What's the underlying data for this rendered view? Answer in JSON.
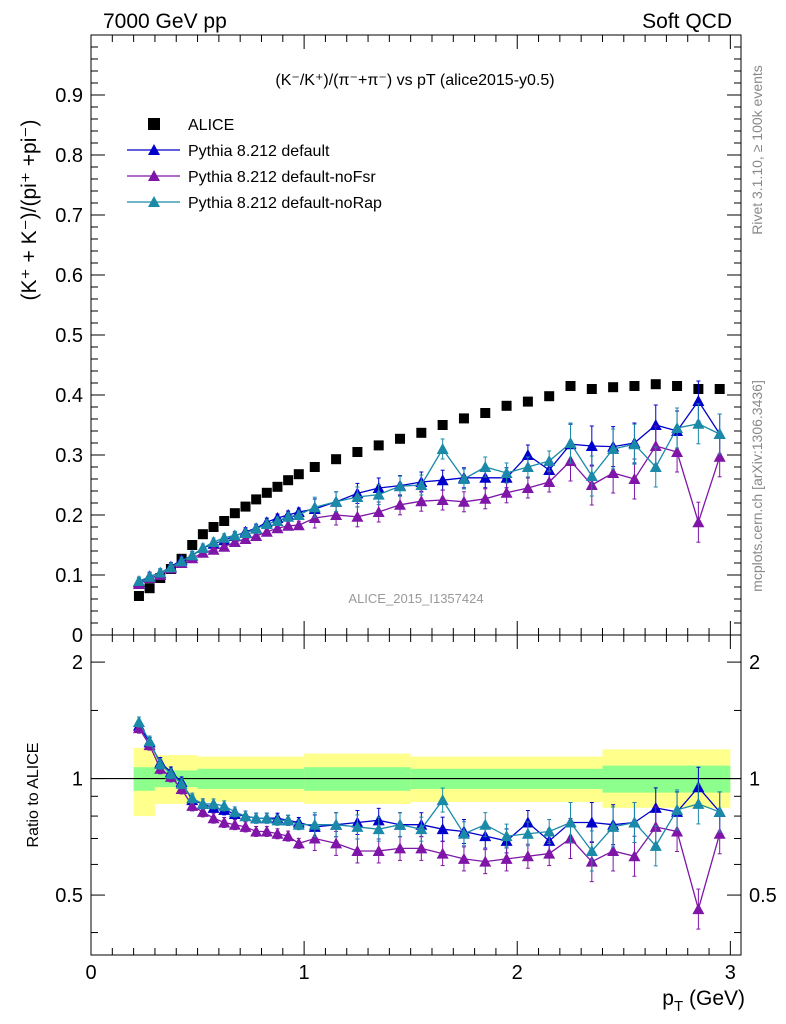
{
  "header": {
    "left": "7000 GeV pp",
    "right": "Soft QCD"
  },
  "side_labels": {
    "rivet": "Rivet 3.1.10, ≥ 100k events",
    "source": "mcplots.cern.ch [arXiv:1306.3436]"
  },
  "plot_title": "(K⁻/K⁺)/(π⁻+π⁻) vs pT (alice2015-y0.5)",
  "watermark": "ALICE_2015_I1357424",
  "colors": {
    "alice": "#000000",
    "default": "#0000cc",
    "noFsr": "#7f16a8",
    "noRap": "#1a8aa8",
    "band_outer": "#ffff8c",
    "band_inner": "#8cff8c"
  },
  "chart_data": [
    {
      "type": "scatter",
      "panel": "main",
      "ylabel": "(K⁺ + K⁻)/(pi⁺ +pi⁻)",
      "xlim": [
        0,
        3.05
      ],
      "ylim": [
        0,
        1.0
      ],
      "yticks": [
        0,
        0.1,
        0.2,
        0.3,
        0.4,
        0.5,
        0.6,
        0.7,
        0.8,
        0.9
      ],
      "ytick_labels": [
        "0",
        "0.1",
        "0.2",
        "0.3",
        "0.4",
        "0.5",
        "0.6",
        "0.7",
        "0.8",
        "0.9"
      ],
      "legend_position": "top-left",
      "series": [
        {
          "name": "ALICE",
          "key": "alice",
          "marker": "square",
          "x": [
            0.225,
            0.275,
            0.325,
            0.375,
            0.425,
            0.475,
            0.525,
            0.575,
            0.625,
            0.675,
            0.725,
            0.775,
            0.825,
            0.875,
            0.925,
            0.975,
            1.05,
            1.15,
            1.25,
            1.35,
            1.45,
            1.55,
            1.65,
            1.75,
            1.85,
            1.95,
            2.05,
            2.15,
            2.25,
            2.35,
            2.45,
            2.55,
            2.65,
            2.75,
            2.85,
            2.95
          ],
          "y": [
            0.065,
            0.078,
            0.095,
            0.11,
            0.127,
            0.15,
            0.168,
            0.18,
            0.19,
            0.203,
            0.214,
            0.226,
            0.237,
            0.247,
            0.258,
            0.268,
            0.28,
            0.293,
            0.305,
            0.316,
            0.327,
            0.337,
            0.35,
            0.361,
            0.37,
            0.382,
            0.389,
            0.398,
            0.415,
            0.41,
            0.413,
            0.415,
            0.418,
            0.415,
            0.41,
            0.41
          ]
        },
        {
          "name": "Pythia 8.212 default",
          "key": "default",
          "marker": "triangle",
          "x": [
            0.225,
            0.275,
            0.325,
            0.375,
            0.425,
            0.475,
            0.525,
            0.575,
            0.625,
            0.675,
            0.725,
            0.775,
            0.825,
            0.875,
            0.925,
            0.975,
            1.05,
            1.15,
            1.25,
            1.35,
            1.45,
            1.55,
            1.65,
            1.75,
            1.85,
            1.95,
            2.05,
            2.15,
            2.25,
            2.35,
            2.45,
            2.55,
            2.65,
            2.75,
            2.85,
            2.95
          ],
          "y": [
            0.088,
            0.098,
            0.103,
            0.114,
            0.125,
            0.132,
            0.145,
            0.152,
            0.158,
            0.165,
            0.172,
            0.178,
            0.188,
            0.195,
            0.2,
            0.205,
            0.21,
            0.222,
            0.236,
            0.245,
            0.249,
            0.255,
            0.258,
            0.262,
            0.262,
            0.262,
            0.3,
            0.275,
            0.318,
            0.315,
            0.314,
            0.32,
            0.35,
            0.34,
            0.39,
            0.335
          ]
        },
        {
          "name": "Pythia 8.212 default-noFsr",
          "key": "noFsr",
          "marker": "triangle",
          "x": [
            0.225,
            0.275,
            0.325,
            0.375,
            0.425,
            0.475,
            0.525,
            0.575,
            0.625,
            0.675,
            0.725,
            0.775,
            0.825,
            0.875,
            0.925,
            0.975,
            1.05,
            1.15,
            1.25,
            1.35,
            1.45,
            1.55,
            1.65,
            1.75,
            1.85,
            1.95,
            2.05,
            2.15,
            2.25,
            2.35,
            2.45,
            2.55,
            2.65,
            2.75,
            2.85,
            2.95
          ],
          "y": [
            0.085,
            0.095,
            0.1,
            0.111,
            0.12,
            0.128,
            0.137,
            0.142,
            0.147,
            0.155,
            0.16,
            0.165,
            0.172,
            0.178,
            0.182,
            0.183,
            0.195,
            0.2,
            0.197,
            0.205,
            0.217,
            0.223,
            0.225,
            0.222,
            0.227,
            0.237,
            0.245,
            0.255,
            0.29,
            0.25,
            0.27,
            0.26,
            0.315,
            0.305,
            0.188,
            0.297
          ]
        },
        {
          "name": "Pythia 8.212 default-noRap",
          "key": "noRap",
          "marker": "triangle",
          "x": [
            0.225,
            0.275,
            0.325,
            0.375,
            0.425,
            0.475,
            0.525,
            0.575,
            0.625,
            0.675,
            0.725,
            0.775,
            0.825,
            0.875,
            0.925,
            0.975,
            1.05,
            1.15,
            1.25,
            1.35,
            1.45,
            1.55,
            1.65,
            1.75,
            1.85,
            1.95,
            2.05,
            2.15,
            2.25,
            2.35,
            2.45,
            2.55,
            2.65,
            2.75,
            2.85,
            2.95
          ],
          "y": [
            0.09,
            0.097,
            0.104,
            0.113,
            0.123,
            0.133,
            0.145,
            0.155,
            0.162,
            0.166,
            0.17,
            0.177,
            0.185,
            0.19,
            0.197,
            0.2,
            0.213,
            0.222,
            0.23,
            0.234,
            0.248,
            0.25,
            0.31,
            0.26,
            0.28,
            0.27,
            0.28,
            0.29,
            0.32,
            0.265,
            0.31,
            0.318,
            0.28,
            0.345,
            0.352,
            0.335
          ]
        }
      ]
    },
    {
      "type": "scatter",
      "panel": "ratio",
      "ylabel": "Ratio to ALICE",
      "xlabel": "p_T (GeV)",
      "xlim": [
        0,
        3.05
      ],
      "xticks": [
        0,
        1,
        2,
        3
      ],
      "xtick_labels": [
        "0",
        "1",
        "2",
        "3"
      ],
      "ylim": [
        0.35,
        2.35
      ],
      "yscale": "log",
      "yticks": [
        0.5,
        1,
        2
      ],
      "ytick_labels": [
        "0.5",
        "1",
        "2"
      ],
      "reference_line": 1,
      "band_segments": [
        {
          "x": [
            0.2,
            0.3
          ],
          "outer": [
            0.8,
            1.2
          ],
          "inner": [
            0.93,
            1.07
          ]
        },
        {
          "x": [
            0.3,
            0.5
          ],
          "outer": [
            0.86,
            1.15
          ],
          "inner": [
            0.95,
            1.05
          ]
        },
        {
          "x": [
            0.5,
            1.0
          ],
          "outer": [
            0.87,
            1.14
          ],
          "inner": [
            0.94,
            1.06
          ]
        },
        {
          "x": [
            1.0,
            1.5
          ],
          "outer": [
            0.86,
            1.16
          ],
          "inner": [
            0.93,
            1.07
          ]
        },
        {
          "x": [
            1.5,
            2.4
          ],
          "outer": [
            0.87,
            1.14
          ],
          "inner": [
            0.94,
            1.06
          ]
        },
        {
          "x": [
            2.4,
            3.0
          ],
          "outer": [
            0.84,
            1.19
          ],
          "inner": [
            0.92,
            1.08
          ]
        }
      ],
      "series": [
        {
          "name": "Pythia 8.212 default",
          "key": "default",
          "x": [
            0.225,
            0.275,
            0.325,
            0.375,
            0.425,
            0.475,
            0.525,
            0.575,
            0.625,
            0.675,
            0.725,
            0.775,
            0.825,
            0.875,
            0.925,
            0.975,
            1.05,
            1.15,
            1.25,
            1.35,
            1.45,
            1.55,
            1.65,
            1.75,
            1.85,
            1.95,
            2.05,
            2.15,
            2.25,
            2.35,
            2.45,
            2.55,
            2.65,
            2.75,
            2.85,
            2.95
          ],
          "y": [
            1.37,
            1.24,
            1.1,
            1.04,
            0.98,
            0.88,
            0.86,
            0.84,
            0.83,
            0.81,
            0.8,
            0.79,
            0.79,
            0.79,
            0.78,
            0.77,
            0.75,
            0.76,
            0.77,
            0.78,
            0.76,
            0.76,
            0.74,
            0.73,
            0.71,
            0.69,
            0.77,
            0.69,
            0.77,
            0.77,
            0.76,
            0.77,
            0.84,
            0.82,
            0.95,
            0.82
          ]
        },
        {
          "name": "Pythia 8.212 default-noFsr",
          "key": "noFsr",
          "x": [
            0.225,
            0.275,
            0.325,
            0.375,
            0.425,
            0.475,
            0.525,
            0.575,
            0.625,
            0.675,
            0.725,
            0.775,
            0.825,
            0.875,
            0.925,
            0.975,
            1.05,
            1.15,
            1.25,
            1.35,
            1.45,
            1.55,
            1.65,
            1.75,
            1.85,
            1.95,
            2.05,
            2.15,
            2.25,
            2.35,
            2.45,
            2.55,
            2.65,
            2.75,
            2.85,
            2.95
          ],
          "y": [
            1.35,
            1.22,
            1.06,
            1.01,
            0.94,
            0.85,
            0.82,
            0.79,
            0.77,
            0.76,
            0.75,
            0.73,
            0.73,
            0.72,
            0.71,
            0.68,
            0.7,
            0.68,
            0.65,
            0.65,
            0.66,
            0.66,
            0.64,
            0.62,
            0.61,
            0.62,
            0.63,
            0.64,
            0.7,
            0.61,
            0.65,
            0.63,
            0.75,
            0.73,
            0.46,
            0.72
          ]
        },
        {
          "name": "Pythia 8.212 default-noRap",
          "key": "noRap",
          "x": [
            0.225,
            0.275,
            0.325,
            0.375,
            0.425,
            0.475,
            0.525,
            0.575,
            0.625,
            0.675,
            0.725,
            0.775,
            0.825,
            0.875,
            0.925,
            0.975,
            1.05,
            1.15,
            1.25,
            1.35,
            1.45,
            1.55,
            1.65,
            1.75,
            1.85,
            1.95,
            2.05,
            2.15,
            2.25,
            2.35,
            2.45,
            2.55,
            2.65,
            2.75,
            2.85,
            2.95
          ],
          "y": [
            1.4,
            1.25,
            1.09,
            1.03,
            0.97,
            0.89,
            0.86,
            0.86,
            0.85,
            0.82,
            0.8,
            0.79,
            0.79,
            0.78,
            0.78,
            0.76,
            0.76,
            0.76,
            0.75,
            0.74,
            0.76,
            0.74,
            0.88,
            0.72,
            0.76,
            0.71,
            0.72,
            0.73,
            0.77,
            0.65,
            0.75,
            0.77,
            0.67,
            0.83,
            0.86,
            0.82
          ]
        }
      ]
    }
  ]
}
